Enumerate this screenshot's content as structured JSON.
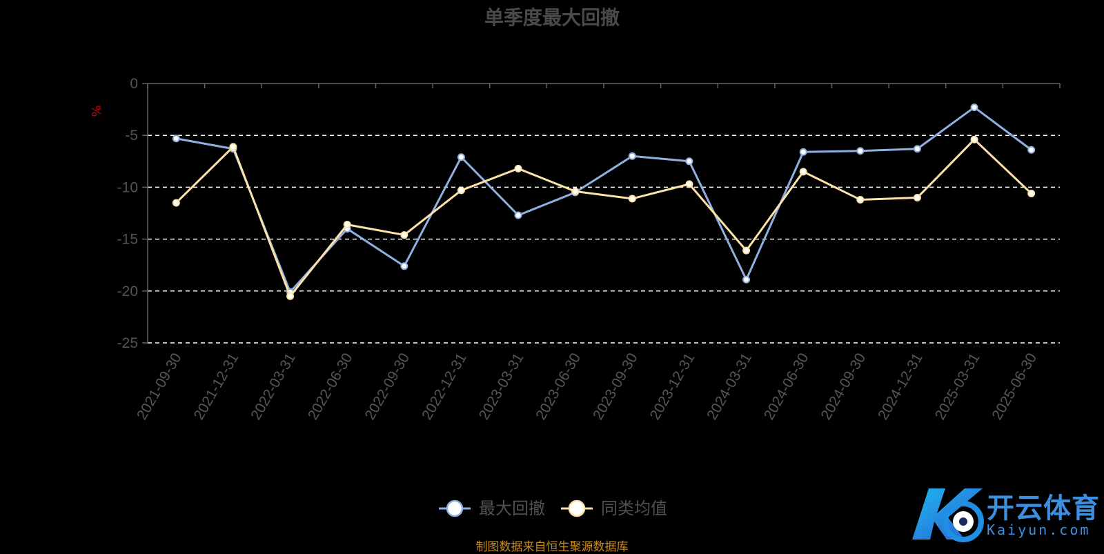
{
  "chart_data": {
    "type": "line",
    "title": "单季度最大回撤",
    "ylabel": "%",
    "categories": [
      "2021-09-30",
      "2021-12-31",
      "2022-03-31",
      "2022-06-30",
      "2022-09-30",
      "2022-12-31",
      "2023-03-31",
      "2023-06-30",
      "2023-09-30",
      "2023-12-31",
      "2024-03-31",
      "2024-06-30",
      "2024-09-30",
      "2024-12-31",
      "2025-03-31",
      "2025-06-30"
    ],
    "series": [
      {
        "name": "最大回撤",
        "color": "#8fb0e0",
        "values": [
          -5.3,
          -6.3,
          -20.1,
          -14.0,
          -17.6,
          -7.1,
          -12.7,
          -10.5,
          -7.0,
          -7.5,
          -18.9,
          -6.6,
          -6.5,
          -6.3,
          -2.3,
          -6.4
        ]
      },
      {
        "name": "同类均值",
        "color": "#fde2a7",
        "values": [
          -11.5,
          -6.1,
          -20.5,
          -13.6,
          -14.6,
          -10.3,
          -8.2,
          -10.4,
          -11.1,
          -9.7,
          -16.1,
          -8.5,
          -11.2,
          -11.0,
          -5.4,
          -10.6
        ]
      }
    ],
    "yticks": [
      0,
      -5,
      -10,
      -15,
      -20,
      -25
    ],
    "ylim": [
      -25,
      0
    ],
    "grid": "dashed horizontal",
    "legend": "bottom-center"
  },
  "source_note": "制图数据来自恒生聚源数据库",
  "watermark": {
    "name": "开云体育",
    "domain": "Kaiyun.com"
  },
  "colors": {
    "axis": "#666666",
    "tick_text": "#555555",
    "grid": "#ffffff",
    "ylabel": "#cc0000"
  }
}
